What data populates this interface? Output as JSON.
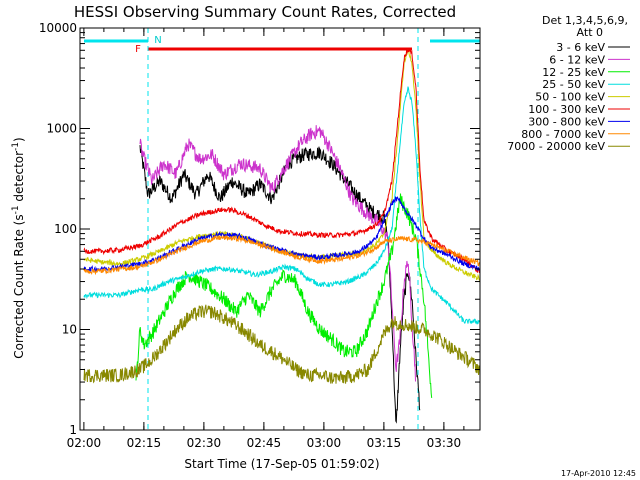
{
  "chart_data": {
    "type": "line",
    "title": "HESSI Observing Summary Count Rates, Corrected",
    "xlabel": "Start Time (17-Sep-05 01:59:02)",
    "ylabel": "Corrected Count Rate (s",
    "ylabel_sup1": "-1",
    "ylabel_mid": " detector",
    "ylabel_sup2": "-1",
    "ylabel_end": ")",
    "xlim": [
      0,
      100
    ],
    "ylim": [
      1,
      10000
    ],
    "yscale": "log",
    "x_ticks": [
      {
        "t": 0.97,
        "label": "02:00"
      },
      {
        "t": 15.97,
        "label": "02:15"
      },
      {
        "t": 30.97,
        "label": "02:30"
      },
      {
        "t": 45.97,
        "label": "02:45"
      },
      {
        "t": 60.97,
        "label": "03:00"
      },
      {
        "t": 75.97,
        "label": "03:15"
      },
      {
        "t": 90.97,
        "label": "03:30"
      }
    ],
    "y_ticks": [
      {
        "v": 1,
        "label": "1"
      },
      {
        "v": 10,
        "label": "10"
      },
      {
        "v": 100,
        "label": "100"
      },
      {
        "v": 1000,
        "label": "1000"
      },
      {
        "v": 10000,
        "label": "10000"
      }
    ],
    "legend_header": [
      "Det 1,3,4,5,6,9,",
      "Att 0"
    ],
    "legend_position": "right",
    "series": [
      {
        "name": "3 - 6 keV",
        "color": "#000000",
        "points": [
          [
            15,
            650
          ],
          [
            17,
            220
          ],
          [
            20,
            300
          ],
          [
            23,
            200
          ],
          [
            26,
            350
          ],
          [
            29,
            220
          ],
          [
            32,
            350
          ],
          [
            35,
            200
          ],
          [
            38,
            300
          ],
          [
            42,
            220
          ],
          [
            45,
            280
          ],
          [
            48,
            200
          ],
          [
            52,
            450
          ],
          [
            56,
            550
          ],
          [
            60,
            580
          ],
          [
            63,
            450
          ],
          [
            67,
            280
          ],
          [
            70,
            200
          ],
          [
            73,
            150
          ],
          [
            76,
            130
          ],
          [
            77,
            80
          ],
          [
            78,
            12
          ],
          [
            79,
            1
          ],
          [
            80,
            6
          ],
          [
            81,
            20
          ],
          [
            82,
            40
          ],
          [
            83,
            20
          ],
          [
            84,
            5
          ],
          [
            85,
            1.6
          ]
        ]
      },
      {
        "name": "6 - 12 keV",
        "color": "#cc33cc",
        "points": [
          [
            15,
            700
          ],
          [
            16,
            500
          ],
          [
            18,
            300
          ],
          [
            21,
            450
          ],
          [
            24,
            350
          ],
          [
            27,
            700
          ],
          [
            30,
            500
          ],
          [
            33,
            550
          ],
          [
            36,
            350
          ],
          [
            40,
            450
          ],
          [
            45,
            400
          ],
          [
            48,
            250
          ],
          [
            51,
            400
          ],
          [
            55,
            700
          ],
          [
            58,
            900
          ],
          [
            60,
            950
          ],
          [
            62,
            700
          ],
          [
            65,
            400
          ],
          [
            68,
            200
          ],
          [
            72,
            140
          ],
          [
            75,
            110
          ],
          [
            77,
            80
          ],
          [
            79,
            4
          ],
          [
            80,
            8
          ],
          [
            81,
            30
          ],
          [
            82,
            50
          ],
          [
            83,
            12
          ],
          [
            84,
            3
          ]
        ]
      },
      {
        "name": "12 - 25 keV",
        "color": "#00ee00",
        "points": [
          [
            14,
            3
          ],
          [
            15,
            10
          ],
          [
            16,
            7
          ],
          [
            18,
            9
          ],
          [
            21,
            15
          ],
          [
            24,
            25
          ],
          [
            27,
            35
          ],
          [
            30,
            30
          ],
          [
            33,
            25
          ],
          [
            36,
            20
          ],
          [
            39,
            15
          ],
          [
            42,
            22
          ],
          [
            45,
            15
          ],
          [
            48,
            25
          ],
          [
            51,
            35
          ],
          [
            54,
            30
          ],
          [
            57,
            15
          ],
          [
            60,
            10
          ],
          [
            63,
            8
          ],
          [
            66,
            6
          ],
          [
            69,
            6
          ],
          [
            72,
            10
          ],
          [
            74,
            18
          ],
          [
            76,
            30
          ],
          [
            78,
            60
          ],
          [
            80,
            200
          ],
          [
            82,
            140
          ],
          [
            84,
            80
          ],
          [
            86,
            20
          ],
          [
            88,
            2
          ]
        ]
      },
      {
        "name": "25 - 50 keV",
        "color": "#00dddd",
        "points": [
          [
            1,
            22
          ],
          [
            5,
            22
          ],
          [
            10,
            22
          ],
          [
            15,
            25
          ],
          [
            18,
            25
          ],
          [
            22,
            30
          ],
          [
            26,
            33
          ],
          [
            30,
            38
          ],
          [
            34,
            40
          ],
          [
            37,
            40
          ],
          [
            40,
            38
          ],
          [
            44,
            35
          ],
          [
            48,
            38
          ],
          [
            51,
            42
          ],
          [
            54,
            40
          ],
          [
            57,
            32
          ],
          [
            60,
            28
          ],
          [
            63,
            28
          ],
          [
            67,
            30
          ],
          [
            71,
            35
          ],
          [
            74,
            45
          ],
          [
            76,
            60
          ],
          [
            78,
            100
          ],
          [
            80,
            700
          ],
          [
            81,
            1700
          ],
          [
            82,
            2500
          ],
          [
            83,
            1800
          ],
          [
            84,
            600
          ],
          [
            85,
            130
          ],
          [
            86,
            40
          ],
          [
            88,
            25
          ],
          [
            92,
            18
          ],
          [
            96,
            12
          ],
          [
            100,
            12
          ]
        ]
      },
      {
        "name": "50 - 100 keV",
        "color": "#cccc00",
        "points": [
          [
            1,
            50
          ],
          [
            5,
            47
          ],
          [
            10,
            45
          ],
          [
            15,
            50
          ],
          [
            20,
            60
          ],
          [
            25,
            75
          ],
          [
            30,
            85
          ],
          [
            35,
            90
          ],
          [
            40,
            85
          ],
          [
            45,
            72
          ],
          [
            50,
            60
          ],
          [
            55,
            55
          ],
          [
            60,
            52
          ],
          [
            65,
            55
          ],
          [
            70,
            58
          ],
          [
            74,
            70
          ],
          [
            76,
            90
          ],
          [
            78,
            200
          ],
          [
            80,
            1500
          ],
          [
            81,
            4500
          ],
          [
            82,
            6000
          ],
          [
            83,
            4500
          ],
          [
            84,
            1500
          ],
          [
            85,
            300
          ],
          [
            86,
            80
          ],
          [
            88,
            60
          ],
          [
            92,
            45
          ],
          [
            96,
            37
          ],
          [
            100,
            32
          ]
        ]
      },
      {
        "name": "100 - 300 keV",
        "color": "#ee0000",
        "points": [
          [
            1,
            60
          ],
          [
            5,
            60
          ],
          [
            10,
            62
          ],
          [
            15,
            68
          ],
          [
            20,
            85
          ],
          [
            25,
            115
          ],
          [
            30,
            140
          ],
          [
            35,
            155
          ],
          [
            38,
            155
          ],
          [
            42,
            135
          ],
          [
            46,
            110
          ],
          [
            50,
            95
          ],
          [
            55,
            90
          ],
          [
            60,
            87
          ],
          [
            65,
            87
          ],
          [
            70,
            92
          ],
          [
            74,
            110
          ],
          [
            76,
            140
          ],
          [
            78,
            300
          ],
          [
            80,
            2000
          ],
          [
            81,
            5000
          ],
          [
            82,
            6200
          ],
          [
            83,
            5500
          ],
          [
            84,
            2500
          ],
          [
            85,
            400
          ],
          [
            86,
            120
          ],
          [
            88,
            80
          ],
          [
            92,
            60
          ],
          [
            96,
            50
          ],
          [
            100,
            37
          ]
        ]
      },
      {
        "name": "300 - 800 keV",
        "color": "#0000ee",
        "points": [
          [
            1,
            40
          ],
          [
            5,
            40
          ],
          [
            10,
            42
          ],
          [
            15,
            45
          ],
          [
            20,
            52
          ],
          [
            25,
            65
          ],
          [
            30,
            80
          ],
          [
            35,
            88
          ],
          [
            40,
            85
          ],
          [
            45,
            72
          ],
          [
            50,
            62
          ],
          [
            55,
            55
          ],
          [
            60,
            52
          ],
          [
            65,
            55
          ],
          [
            70,
            60
          ],
          [
            74,
            80
          ],
          [
            76,
            120
          ],
          [
            78,
            180
          ],
          [
            79,
            200
          ],
          [
            80,
            190
          ],
          [
            82,
            140
          ],
          [
            84,
            110
          ],
          [
            86,
            80
          ],
          [
            88,
            65
          ],
          [
            92,
            55
          ],
          [
            96,
            45
          ],
          [
            100,
            40
          ]
        ]
      },
      {
        "name": "800 - 7000 keV",
        "color": "#ff8800",
        "points": [
          [
            1,
            38
          ],
          [
            5,
            38
          ],
          [
            10,
            40
          ],
          [
            15,
            42
          ],
          [
            20,
            50
          ],
          [
            25,
            62
          ],
          [
            30,
            75
          ],
          [
            35,
            82
          ],
          [
            40,
            80
          ],
          [
            45,
            70
          ],
          [
            50,
            60
          ],
          [
            55,
            52
          ],
          [
            60,
            48
          ],
          [
            65,
            50
          ],
          [
            70,
            55
          ],
          [
            74,
            65
          ],
          [
            76,
            75
          ],
          [
            80,
            80
          ],
          [
            84,
            78
          ],
          [
            88,
            70
          ],
          [
            92,
            60
          ],
          [
            96,
            52
          ],
          [
            100,
            45
          ]
        ]
      },
      {
        "name": "7000 - 20000 keV",
        "color": "#888800",
        "points": [
          [
            1,
            3.5
          ],
          [
            5,
            3.5
          ],
          [
            10,
            3.5
          ],
          [
            15,
            4
          ],
          [
            18,
            5
          ],
          [
            21,
            7
          ],
          [
            24,
            10
          ],
          [
            27,
            13
          ],
          [
            30,
            15
          ],
          [
            33,
            15
          ],
          [
            36,
            13
          ],
          [
            39,
            11
          ],
          [
            42,
            9
          ],
          [
            45,
            7
          ],
          [
            48,
            6
          ],
          [
            51,
            5
          ],
          [
            54,
            4
          ],
          [
            57,
            3.5
          ],
          [
            60,
            3.5
          ],
          [
            63,
            3.3
          ],
          [
            66,
            3.3
          ],
          [
            69,
            3.5
          ],
          [
            72,
            4
          ],
          [
            74,
            6
          ],
          [
            76,
            9
          ],
          [
            78,
            12
          ],
          [
            82,
            11
          ],
          [
            86,
            10
          ],
          [
            90,
            8
          ],
          [
            94,
            6
          ],
          [
            97,
            5
          ],
          [
            100,
            4
          ]
        ]
      }
    ],
    "annotations": {
      "cyan_bars": [
        [
          1,
          17
        ],
        [
          87.5,
          100
        ]
      ],
      "red_bar": [
        17,
        83
      ],
      "dashed_lines": [
        17,
        84.5,
        100
      ],
      "label_F": "F",
      "label_N": "N"
    },
    "footer": "17-Apr-2010 12:45"
  }
}
